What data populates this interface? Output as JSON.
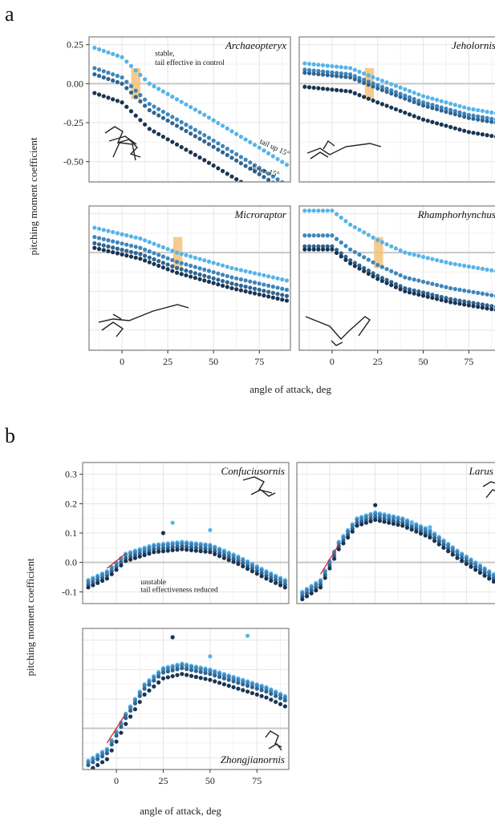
{
  "figure": {
    "panel_a_label": "a",
    "panel_b_label": "b",
    "ylabel": "pitching moment coefficient",
    "xlabel": "angle of attack, deg"
  },
  "colors": {
    "series": [
      "#56b4e9",
      "#3d86bd",
      "#2f6592",
      "#1a3552"
    ],
    "zero_line": "#c8c8c8",
    "grid_major": "#e4e4e4",
    "grid_minor": "#f2f2f2",
    "panel_border": "#7f7f7f",
    "highlight": "#f5c27a",
    "fit_line": "#e02020"
  },
  "chart_data": [
    {
      "type": "scatter",
      "facet": "Archaeopteryx",
      "group": "a",
      "x": [
        -15,
        -12.5,
        -10,
        -7.5,
        -5,
        -2.5,
        0,
        2.5,
        5,
        7.5,
        10,
        12.5,
        15,
        17.5,
        20,
        22.5,
        25,
        27.5,
        30,
        32.5,
        35,
        37.5,
        40,
        42.5,
        45,
        47.5,
        50,
        52.5,
        55,
        57.5,
        60,
        62.5,
        65,
        67.5,
        70,
        72.5,
        75,
        77.5,
        80,
        82.5,
        85,
        87.5,
        90
      ],
      "xlim": [
        -18,
        92
      ],
      "ylim": [
        -0.63,
        0.3
      ],
      "xticks": [
        0,
        25,
        50,
        75
      ],
      "yticks": [
        0.25,
        0.0,
        -0.25,
        -0.5
      ],
      "ytick_labels": [
        "0.25",
        "0.00",
        "-0.25",
        "-0.50"
      ],
      "highlight": [
        5,
        10
      ],
      "curves": [
        [
          -15,
          0.23
        ],
        [
          0,
          0.17
        ],
        [
          15,
          0.0
        ],
        [
          45,
          -0.2
        ],
        [
          75,
          -0.41
        ],
        [
          90,
          -0.52
        ]
      ],
      "offsets": [
        0,
        -0.13,
        -0.17,
        -0.29
      ],
      "annotations": [
        {
          "text": "stable,",
          "x": 18,
          "y": 0.18
        },
        {
          "text": "tail effective in control",
          "x": 18,
          "y": 0.12
        },
        {
          "text": "tail up 15°",
          "x": 75,
          "y": -0.38,
          "rotate": 25
        },
        {
          "text": "down 15°",
          "x": 70,
          "y": -0.55,
          "rotate": 15
        }
      ],
      "silhouette": "archaeopteryx"
    },
    {
      "type": "scatter",
      "facet": "Jeholornis",
      "group": "a",
      "x": [
        -15,
        -12.5,
        -10,
        -7.5,
        -5,
        -2.5,
        0,
        2.5,
        5,
        7.5,
        10,
        12.5,
        15,
        17.5,
        20,
        22.5,
        25,
        27.5,
        30,
        32.5,
        35,
        37.5,
        40,
        42.5,
        45,
        47.5,
        50,
        52.5,
        55,
        57.5,
        60,
        62.5,
        65,
        67.5,
        70,
        72.5,
        75,
        77.5,
        80,
        82.5,
        85,
        87.5,
        90
      ],
      "xlim": [
        -18,
        92
      ],
      "ylim": [
        -0.63,
        0.3
      ],
      "xticks": [
        0,
        25,
        50,
        75
      ],
      "yticks": [
        0.25,
        0.0,
        -0.25,
        -0.5
      ],
      "highlight": [
        18,
        23
      ],
      "curves": [
        [
          -15,
          0.13
        ],
        [
          10,
          0.1
        ],
        [
          25,
          0.03
        ],
        [
          50,
          -0.08
        ],
        [
          75,
          -0.16
        ],
        [
          90,
          -0.19
        ]
      ],
      "offsets": [
        0,
        -0.04,
        -0.06,
        -0.15
      ],
      "silhouette": "jeholornis"
    },
    {
      "type": "scatter",
      "facet": "Microraptor",
      "group": "a",
      "x": [
        -15,
        -12.5,
        -10,
        -7.5,
        -5,
        -2.5,
        0,
        2.5,
        5,
        7.5,
        10,
        12.5,
        15,
        17.5,
        20,
        22.5,
        25,
        27.5,
        30,
        32.5,
        35,
        37.5,
        40,
        42.5,
        45,
        47.5,
        50,
        52.5,
        55,
        57.5,
        60,
        62.5,
        65,
        67.5,
        70,
        72.5,
        75,
        77.5,
        80,
        82.5,
        85,
        87.5,
        90
      ],
      "xlim": [
        -18,
        92
      ],
      "ylim": [
        -0.63,
        0.3
      ],
      "xticks": [
        0,
        25,
        50,
        75
      ],
      "yticks": [
        0.25,
        0.0,
        -0.25,
        -0.5
      ],
      "highlight": [
        28,
        33
      ],
      "curves": [
        [
          -15,
          0.16
        ],
        [
          10,
          0.09
        ],
        [
          30,
          0.0
        ],
        [
          60,
          -0.1
        ],
        [
          90,
          -0.18
        ]
      ],
      "offsets": [
        0,
        -0.06,
        -0.1,
        -0.13
      ],
      "silhouette": "microraptor"
    },
    {
      "type": "scatter",
      "facet": "Rhamphorhynchus",
      "group": "a",
      "x": [
        -15,
        -12.5,
        -10,
        -7.5,
        -5,
        -2.5,
        0,
        2.5,
        5,
        7.5,
        10,
        12.5,
        15,
        17.5,
        20,
        22.5,
        25,
        27.5,
        30,
        32.5,
        35,
        37.5,
        40,
        42.5,
        45,
        47.5,
        50,
        52.5,
        55,
        57.5,
        60,
        62.5,
        65,
        67.5,
        70,
        72.5,
        75,
        77.5,
        80,
        82.5,
        85,
        87.5,
        90
      ],
      "xlim": [
        -18,
        92
      ],
      "ylim": [
        -0.63,
        0.3
      ],
      "xticks": [
        0,
        25,
        50,
        75
      ],
      "yticks": [
        0.25,
        0.0,
        -0.25,
        -0.5
      ],
      "highlight": [
        23,
        28
      ],
      "curves": [
        [
          -15,
          0.27
        ],
        [
          0,
          0.27
        ],
        [
          10,
          0.18
        ],
        [
          25,
          0.08
        ],
        [
          40,
          0.0
        ],
        [
          65,
          -0.07
        ],
        [
          90,
          -0.12
        ]
      ],
      "offsets": [
        0,
        -0.16,
        -0.23,
        -0.25
      ],
      "silhouette": "rhamphorhynchus"
    },
    {
      "type": "scatter",
      "facet": "Confuciusornis",
      "group": "b",
      "x": [
        -15,
        -12.5,
        -10,
        -7.5,
        -5,
        -2.5,
        0,
        2.5,
        5,
        7.5,
        10,
        12.5,
        15,
        17.5,
        20,
        22.5,
        25,
        27.5,
        30,
        32.5,
        35,
        37.5,
        40,
        42.5,
        45,
        47.5,
        50,
        52.5,
        55,
        57.5,
        60,
        62.5,
        65,
        67.5,
        70,
        72.5,
        75,
        77.5,
        80,
        82.5,
        85,
        87.5,
        90
      ],
      "xlim": [
        -18,
        92
      ],
      "ylim": [
        -0.14,
        0.34
      ],
      "xticks": [
        0,
        25,
        50,
        75
      ],
      "yticks": [
        0.3,
        0.2,
        0.1,
        0.0,
        -0.1
      ],
      "ytick_labels": [
        "0.3",
        "0.2",
        "0.1",
        "0.0",
        "-0.1"
      ],
      "curves": [
        [
          -15,
          -0.06
        ],
        [
          -5,
          -0.03
        ],
        [
          5,
          0.03
        ],
        [
          20,
          0.06
        ],
        [
          35,
          0.07
        ],
        [
          50,
          0.06
        ],
        [
          65,
          0.02
        ],
        [
          80,
          -0.03
        ],
        [
          90,
          -0.06
        ]
      ],
      "offsets": [
        0,
        -0.005,
        -0.015,
        -0.025
      ],
      "outliers": [
        [
          25,
          0.1
        ],
        [
          30,
          0.135
        ],
        [
          50,
          0.11
        ]
      ],
      "fit_line": [
        [
          -5,
          -0.02
        ],
        [
          5,
          0.03
        ]
      ],
      "annotations": [
        {
          "text": "unstable",
          "x": 13,
          "y": -0.075
        },
        {
          "text": "tail effectiveness reduced",
          "x": 13,
          "y": -0.1
        }
      ],
      "silhouette": "confuciusornis"
    },
    {
      "type": "scatter",
      "facet": "Larus",
      "group": "b",
      "x": [
        -15,
        -12.5,
        -10,
        -7.5,
        -5,
        -2.5,
        0,
        2.5,
        5,
        7.5,
        10,
        12.5,
        15,
        17.5,
        20,
        22.5,
        25,
        27.5,
        30,
        32.5,
        35,
        37.5,
        40,
        42.5,
        45,
        47.5,
        50,
        52.5,
        55,
        57.5,
        60,
        62.5,
        65,
        67.5,
        70,
        72.5,
        75,
        77.5,
        80,
        82.5,
        85,
        87.5,
        90
      ],
      "xlim": [
        -18,
        92
      ],
      "ylim": [
        -0.14,
        0.34
      ],
      "xticks": [
        0,
        25,
        50,
        75
      ],
      "yticks": [
        0.3,
        0.2,
        0.1,
        0.0,
        -0.1
      ],
      "curves": [
        [
          -15,
          -0.1
        ],
        [
          -5,
          -0.06
        ],
        [
          5,
          0.07
        ],
        [
          15,
          0.15
        ],
        [
          25,
          0.17
        ],
        [
          40,
          0.15
        ],
        [
          55,
          0.11
        ],
        [
          70,
          0.04
        ],
        [
          90,
          -0.04
        ]
      ],
      "offsets": [
        0,
        -0.005,
        -0.015,
        -0.025
      ],
      "outliers": [
        [
          25,
          0.195
        ],
        [
          45,
          0.135
        ],
        [
          55,
          0.12
        ]
      ],
      "fit_line": [
        [
          -5,
          -0.04
        ],
        [
          5,
          0.06
        ]
      ],
      "silhouette": "larus"
    },
    {
      "type": "scatter",
      "facet": "Zhongjianornis",
      "group": "b",
      "x": [
        -15,
        -12.5,
        -10,
        -7.5,
        -5,
        -2.5,
        0,
        2.5,
        5,
        7.5,
        10,
        12.5,
        15,
        17.5,
        20,
        22.5,
        25,
        27.5,
        30,
        32.5,
        35,
        37.5,
        40,
        42.5,
        45,
        47.5,
        50,
        52.5,
        55,
        57.5,
        60,
        62.5,
        65,
        67.5,
        70,
        72.5,
        75,
        77.5,
        80,
        82.5,
        85,
        87.5,
        90
      ],
      "xlim": [
        -18,
        92
      ],
      "ylim": [
        -0.14,
        0.34
      ],
      "xticks": [
        0,
        25,
        50,
        75
      ],
      "yticks": [
        0.3,
        0.2,
        0.1,
        0.0,
        -0.1
      ],
      "curves": [
        [
          -15,
          -0.11
        ],
        [
          -5,
          -0.07
        ],
        [
          5,
          0.05
        ],
        [
          15,
          0.15
        ],
        [
          25,
          0.205
        ],
        [
          35,
          0.22
        ],
        [
          50,
          0.2
        ],
        [
          65,
          0.17
        ],
        [
          80,
          0.14
        ],
        [
          90,
          0.11
        ]
      ],
      "offsets": [
        0,
        -0.005,
        -0.015,
        -0.035
      ],
      "outliers": [
        [
          30,
          0.31
        ],
        [
          50,
          0.245
        ],
        [
          70,
          0.315
        ]
      ],
      "fit_line": [
        [
          -5,
          -0.05
        ],
        [
          5,
          0.05
        ]
      ],
      "silhouette": "zhongjianornis"
    }
  ]
}
